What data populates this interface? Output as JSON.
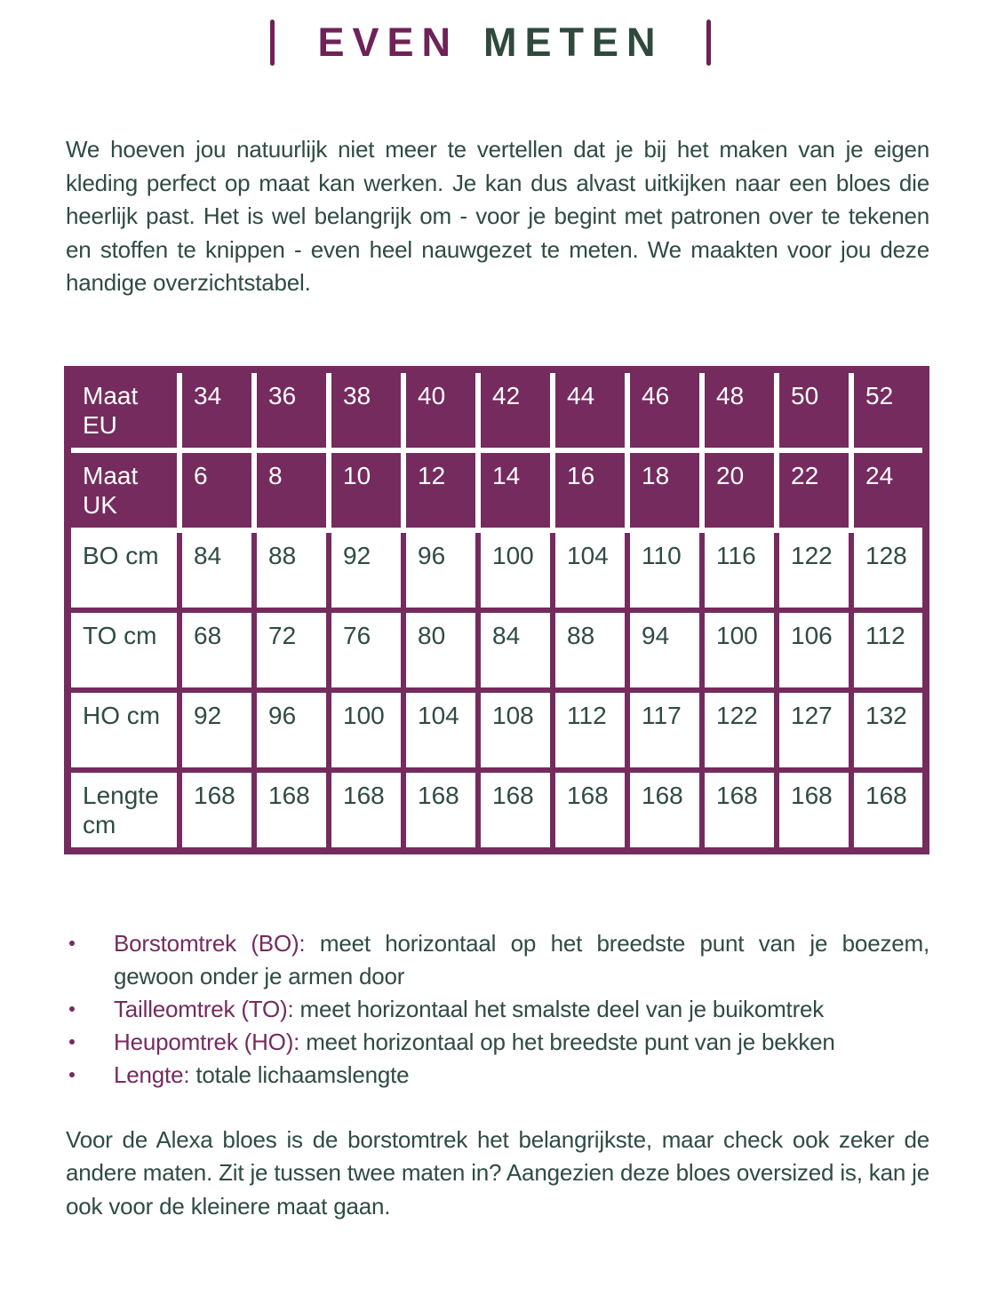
{
  "colors": {
    "purple": "#752B5E",
    "title_purple": "#6E2257",
    "title_green": "#2F4A3C",
    "text_teal": "#2F4B44",
    "table_body_bg": "#FFFFFF"
  },
  "title": {
    "word1": "EVEN",
    "word2": "METEN"
  },
  "intro": "We hoeven jou natuurlijk niet meer te vertellen dat je bij het maken van je eigen kleding perfect op maat kan werken. Je kan dus alvast uitkijken naar een bloes die heerlijk past. Het is wel belangrijk om - voor je begint met patronen over te tekenen en stoffen te knippen - even heel nauwgezet te meten. We maakten voor jou deze handige overzichtstabel.",
  "size_table": {
    "rows": [
      {
        "label": "Maat EU",
        "header": true,
        "values": [
          "34",
          "36",
          "38",
          "40",
          "42",
          "44",
          "46",
          "48",
          "50",
          "52"
        ]
      },
      {
        "label": "Maat UK",
        "header": true,
        "values": [
          "6",
          "8",
          "10",
          "12",
          "14",
          "16",
          "18",
          "20",
          "22",
          "24"
        ]
      },
      {
        "label": "BO cm",
        "header": false,
        "values": [
          "84",
          "88",
          "92",
          "96",
          "100",
          "104",
          "110",
          "116",
          "122",
          "128"
        ]
      },
      {
        "label": "TO cm",
        "header": false,
        "values": [
          "68",
          "72",
          "76",
          "80",
          "84",
          "88",
          "94",
          "100",
          "106",
          "112"
        ]
      },
      {
        "label": "HO cm",
        "header": false,
        "values": [
          "92",
          "96",
          "100",
          "104",
          "108",
          "112",
          "117",
          "122",
          "127",
          "132"
        ]
      },
      {
        "label": "Lengte cm",
        "header": false,
        "values": [
          "168",
          "168",
          "168",
          "168",
          "168",
          "168",
          "168",
          "168",
          "168",
          "168"
        ]
      }
    ]
  },
  "legend": [
    {
      "term": "Borstomtrek (BO):",
      "rest": " meet horizontaal op het breedste punt van je boezem, gewoon onder je armen door"
    },
    {
      "term": "Tailleomtrek (TO):",
      "rest": " meet horizontaal het smalste deel van je buikomtrek"
    },
    {
      "term": "Heupomtrek (HO):",
      "rest": " meet horizontaal op het breedste punt van je bekken"
    },
    {
      "term": "Lengte:",
      "rest": " totale lichaamslengte"
    }
  ],
  "outro": "Voor de Alexa bloes is de borstomtrek het belangrijkste, maar check ook zeker de andere maten. Zit je tussen twee maten in? Aangezien deze bloes oversized is, kan je ook voor de kleinere maat gaan."
}
